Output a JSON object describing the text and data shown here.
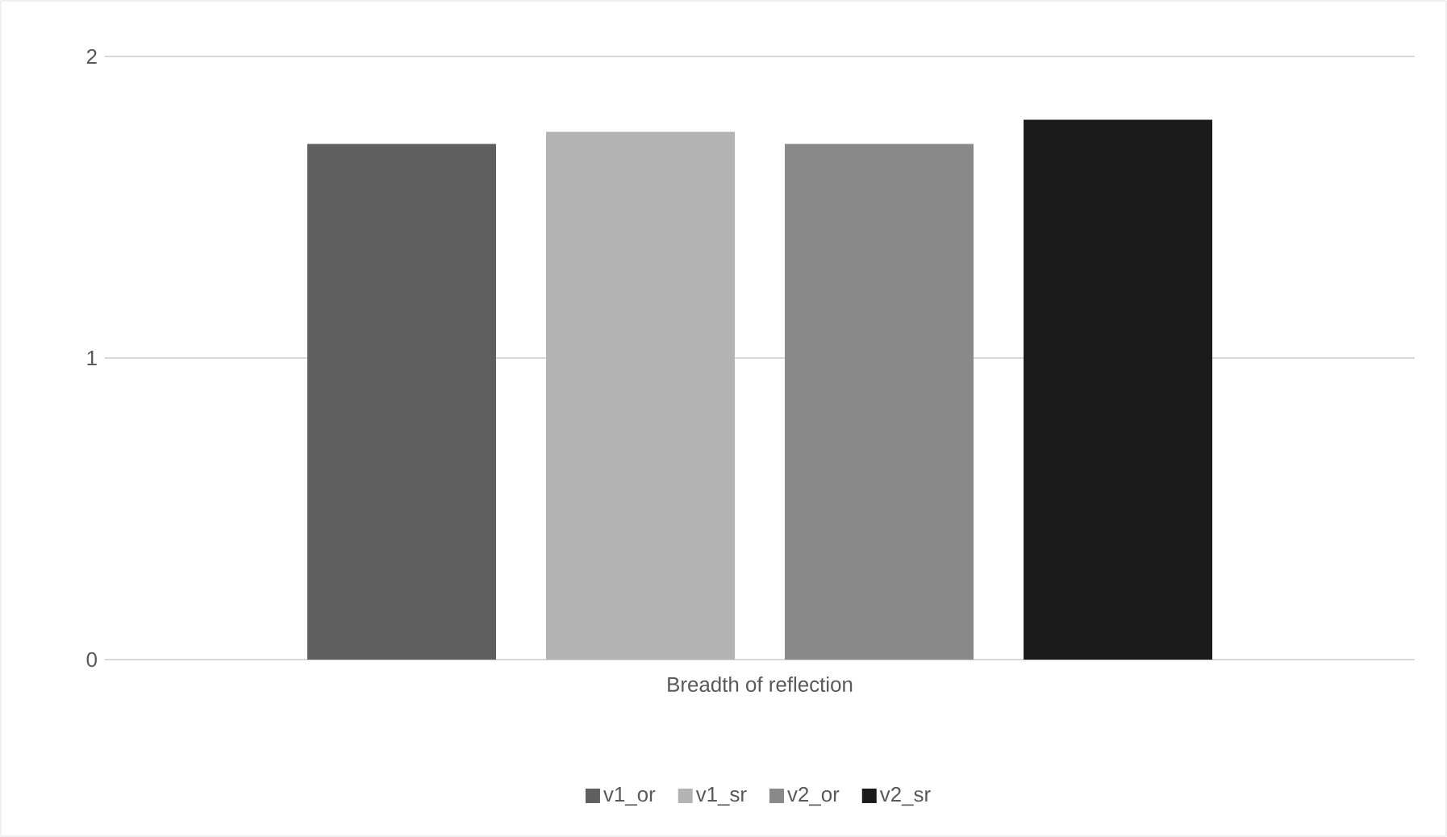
{
  "chart_data": {
    "type": "bar",
    "categories": [
      "Breadth of reflection"
    ],
    "series": [
      {
        "name": "v1_or",
        "color": "#5f5f5f",
        "values": [
          1.71
        ]
      },
      {
        "name": "v1_sr",
        "color": "#b3b3b3",
        "values": [
          1.75
        ]
      },
      {
        "name": "v2_or",
        "color": "#898989",
        "values": [
          1.71
        ]
      },
      {
        "name": "v2_sr",
        "color": "#1b1b1b",
        "values": [
          1.79
        ]
      }
    ],
    "ylim": [
      0,
      2
    ],
    "yticks": [
      0,
      1,
      2
    ],
    "grid": "y",
    "legend": "bottom"
  }
}
